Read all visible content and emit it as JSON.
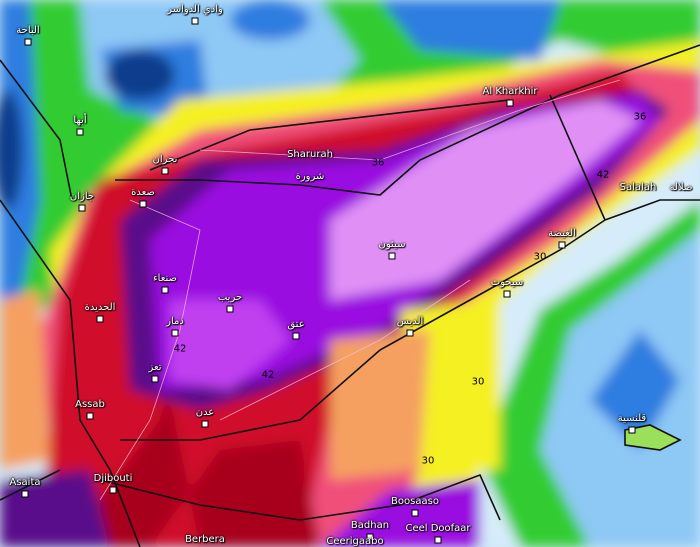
{
  "map": {
    "field_colors": {
      "dark_blue": "#0a3d8c",
      "blue": "#2f7de0",
      "light_blue": "#8ec8f5",
      "pale_blue": "#d6ecfa",
      "green": "#33cc33",
      "light_green": "#9be05a",
      "yellow": "#f5f021",
      "orange": "#f5a060",
      "pink": "#f0507a",
      "red": "#d0102a",
      "dark_red": "#a8001a",
      "dark_purple": "#5a0a8a",
      "purple": "#9a10e0",
      "violet": "#c040f0",
      "light_violet": "#e090f5"
    },
    "cities": [
      {
        "name": "وادي الدواسر"
      },
      {
        "name": "الباحة"
      },
      {
        "name": "أبها"
      },
      {
        "name": "نجران"
      },
      {
        "name": "جازان"
      },
      {
        "name": "صعدة"
      },
      {
        "name": "Sharurah"
      },
      {
        "name": "شرورة"
      },
      {
        "name": "Al Kharkhir"
      },
      {
        "name": "Salalah"
      },
      {
        "name": "صلالة"
      },
      {
        "name": "الغيضة"
      },
      {
        "name": "سيئون"
      },
      {
        "name": "سيحوت"
      },
      {
        "name": "صنعاء"
      },
      {
        "name": "حريب"
      },
      {
        "name": "الحديدة"
      },
      {
        "name": "ذمار"
      },
      {
        "name": "عتق"
      },
      {
        "name": "الديس"
      },
      {
        "name": "تعز"
      },
      {
        "name": "عدن"
      },
      {
        "name": "Assab"
      },
      {
        "name": "Asaita"
      },
      {
        "name": "Djibouti"
      },
      {
        "name": "قلنسية"
      },
      {
        "name": "Boosaaso"
      },
      {
        "name": "Badhan"
      },
      {
        "name": "Ceel Doofaar"
      },
      {
        "name": "Berbera"
      },
      {
        "name": "Ceerigaabo"
      }
    ],
    "contour_labels": [
      "30",
      "30",
      "30",
      "36",
      "36",
      "42",
      "42",
      "42"
    ]
  }
}
